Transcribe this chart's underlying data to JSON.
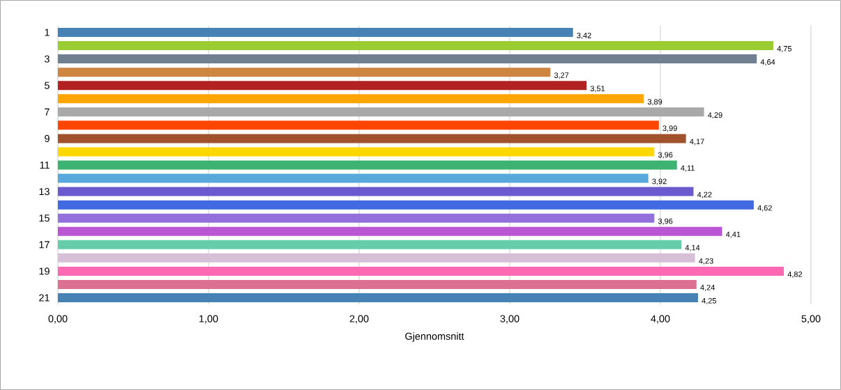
{
  "chart_data": {
    "type": "bar",
    "orientation": "horizontal",
    "xlabel": "Gjennomsnitt",
    "categories": [
      "1",
      null,
      "3",
      null,
      "5",
      null,
      "7",
      null,
      "9",
      null,
      "11",
      null,
      "13",
      null,
      "15",
      null,
      "17",
      null,
      "19",
      null,
      "21"
    ],
    "values": [
      3.42,
      4.75,
      4.64,
      3.27,
      3.51,
      3.89,
      4.29,
      3.99,
      4.17,
      3.96,
      4.11,
      3.92,
      4.22,
      4.62,
      3.96,
      4.41,
      4.14,
      4.23,
      4.82,
      4.24,
      4.25
    ],
    "value_labels": [
      "3,42",
      "4,75",
      "4,64",
      "3,27",
      "3,51",
      "3,89",
      "4,29",
      "3,99",
      "4,17",
      "3,96",
      "4,11",
      "3,92",
      "4,22",
      "4,62",
      "3,96",
      "4,41",
      "4,14",
      "4,23",
      "4,82",
      "4,24",
      "4,25"
    ],
    "colors": [
      "#4682b4",
      "#9acd32",
      "#708090",
      "#cd853f",
      "#b22222",
      "#ffa500",
      "#a9a9a9",
      "#ff4500",
      "#a0522d",
      "#ffd700",
      "#3cb371",
      "#58a8dc",
      "#6a5acd",
      "#4169e1",
      "#9370db",
      "#ba55d3",
      "#66cdaa",
      "#d8bfd8",
      "#ff69b4",
      "#db7093",
      "#4682b4"
    ],
    "xlim": [
      0,
      5
    ],
    "xticks": [
      {
        "value": 0,
        "label": "0,00"
      },
      {
        "value": 1,
        "label": "1,00"
      },
      {
        "value": 2,
        "label": "2,00"
      },
      {
        "value": 3,
        "label": "3,00"
      },
      {
        "value": 4,
        "label": "4,00"
      },
      {
        "value": 5,
        "label": "5,00"
      }
    ],
    "grid": "x"
  }
}
